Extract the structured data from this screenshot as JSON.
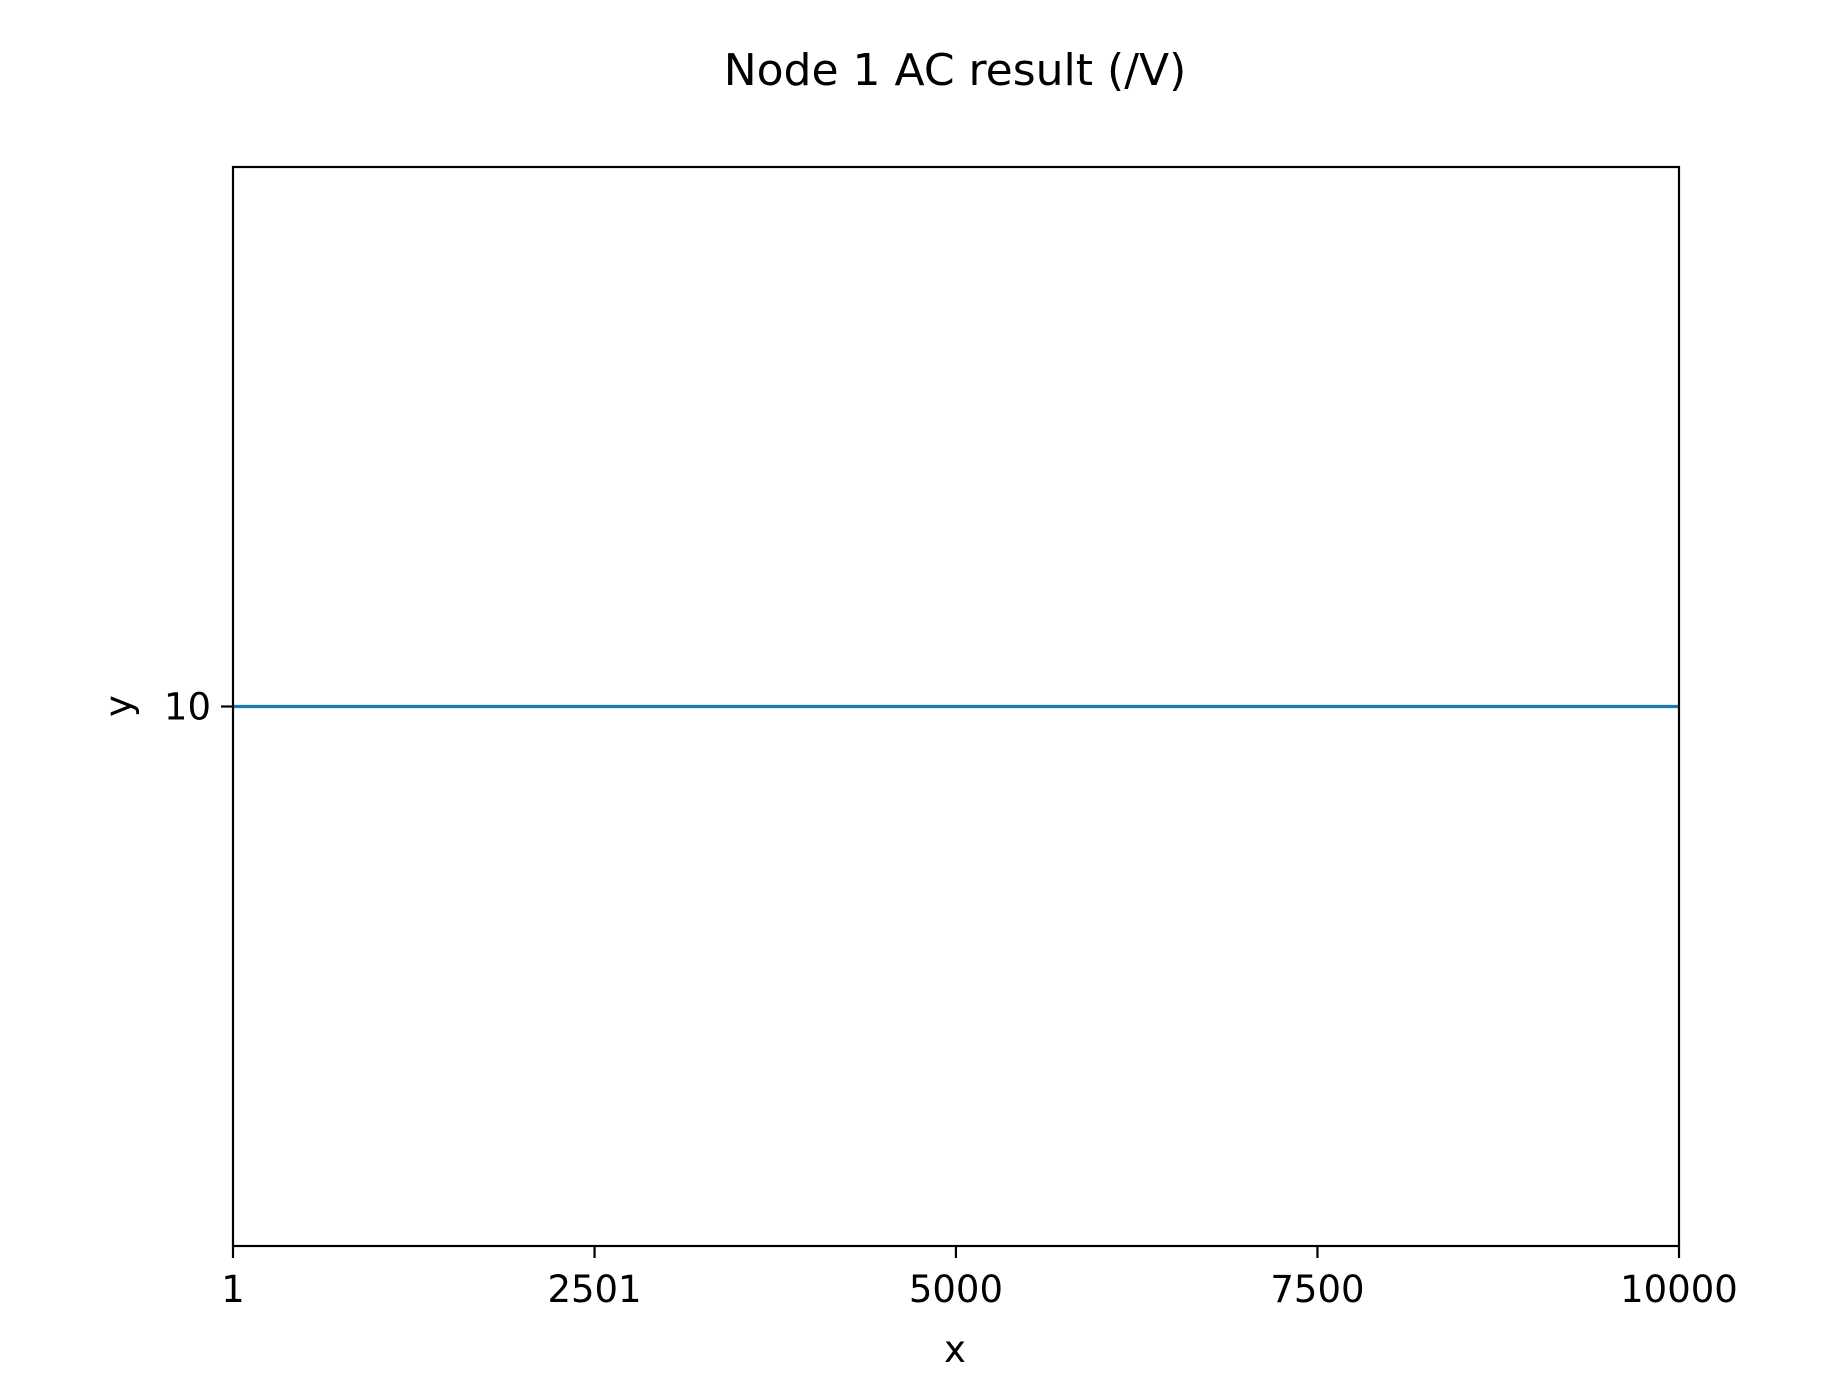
{
  "chart_data": {
    "type": "line",
    "title": "Node 1 AC result (/V)",
    "xlabel": "x",
    "ylabel": "y",
    "xlim": [
      1,
      10000
    ],
    "ylim": [
      9,
      11
    ],
    "xticks": [
      1,
      2501,
      5000,
      7500,
      10000
    ],
    "yticks": [
      10
    ],
    "grid": false,
    "series": [
      {
        "x": [
          1,
          10000
        ],
        "y": [
          10,
          10
        ],
        "color": "#1f77b4"
      }
    ]
  }
}
